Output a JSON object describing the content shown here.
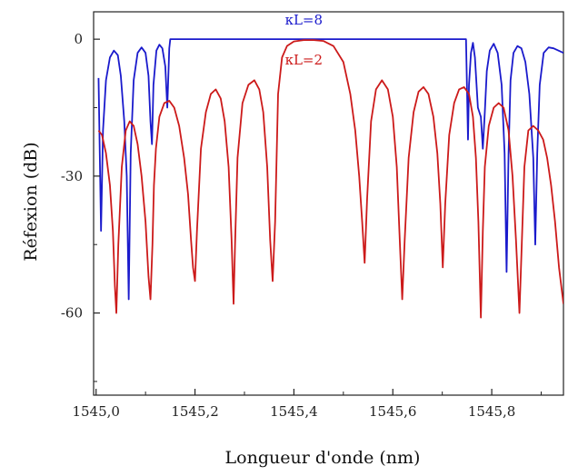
{
  "chart_data": {
    "type": "line",
    "title": "",
    "xlabel": "Longueur d'onde (nm)",
    "ylabel": "Réfexion (dB)",
    "xlim": [
      1544.995,
      1545.945
    ],
    "ylim": [
      -78,
      6
    ],
    "x_ticks": [
      1545.0,
      1545.2,
      1545.4,
      1545.6,
      1545.8
    ],
    "x_tick_labels": [
      "1545,0",
      "1545,2",
      "1545,4",
      "1545,6",
      "1545,8"
    ],
    "y_ticks": [
      0,
      -30,
      -60
    ],
    "y_tick_labels": [
      "0",
      "-30",
      "-60"
    ],
    "grid": false,
    "series": [
      {
        "name": "κL=8",
        "color": "#1a1acc",
        "x": [
          1545.005,
          1545.01,
          1545.014,
          1545.02,
          1545.028,
          1545.036,
          1545.044,
          1545.05,
          1545.057,
          1545.062,
          1545.066,
          1545.07,
          1545.076,
          1545.084,
          1545.092,
          1545.1,
          1545.106,
          1545.11,
          1545.113,
          1545.116,
          1545.122,
          1545.128,
          1545.134,
          1545.14,
          1545.144,
          1545.148,
          1545.15,
          1545.16,
          1545.2,
          1545.3,
          1545.4,
          1545.5,
          1545.6,
          1545.7,
          1545.74,
          1545.748,
          1545.752,
          1545.754,
          1545.758,
          1545.762,
          1545.766,
          1545.772,
          1545.778,
          1545.782,
          1545.786,
          1545.79,
          1545.796,
          1545.804,
          1545.812,
          1545.82,
          1545.826,
          1545.83,
          1545.834,
          1545.838,
          1545.844,
          1545.852,
          1545.86,
          1545.868,
          1545.876,
          1545.884,
          1545.888,
          1545.892,
          1545.897,
          1545.905,
          1545.915,
          1545.925,
          1545.935,
          1545.945
        ],
        "y": [
          -8.5,
          -42,
          -20,
          -9,
          -4,
          -2.5,
          -3.5,
          -8,
          -18,
          -30,
          -57,
          -25,
          -9,
          -3,
          -1.8,
          -3,
          -8,
          -18,
          -23,
          -10,
          -2.5,
          -1.2,
          -2,
          -6,
          -15,
          -2,
          0,
          0,
          0,
          0,
          0,
          0,
          0,
          0,
          0,
          0,
          -22,
          -10,
          -3,
          -0.8,
          -4,
          -15,
          -17,
          -24,
          -16,
          -7,
          -2.5,
          -1,
          -3,
          -10,
          -25,
          -51,
          -25,
          -9,
          -3,
          -1.5,
          -2,
          -5,
          -12,
          -26,
          -45,
          -25,
          -10,
          -3,
          -1.8,
          -2,
          -2.5,
          -3
        ]
      },
      {
        "name": "κL=2",
        "color": "#cc1a1a",
        "x": [
          1545.005,
          1545.012,
          1545.02,
          1545.028,
          1545.034,
          1545.038,
          1545.041,
          1545.045,
          1545.052,
          1545.06,
          1545.068,
          1545.076,
          1545.084,
          1545.092,
          1545.1,
          1545.106,
          1545.11,
          1545.114,
          1545.117,
          1545.121,
          1545.128,
          1545.138,
          1545.148,
          1545.158,
          1545.168,
          1545.178,
          1545.186,
          1545.192,
          1545.196,
          1545.2,
          1545.204,
          1545.212,
          1545.222,
          1545.232,
          1545.242,
          1545.252,
          1545.26,
          1545.268,
          1545.274,
          1545.278,
          1545.281,
          1545.286,
          1545.296,
          1545.308,
          1545.32,
          1545.33,
          1545.338,
          1545.346,
          1545.352,
          1545.357,
          1545.362,
          1545.368,
          1545.376,
          1545.386,
          1545.4,
          1545.42,
          1545.44,
          1545.46,
          1545.48,
          1545.5,
          1545.514,
          1545.524,
          1545.532,
          1545.538,
          1545.543,
          1545.548,
          1545.556,
          1545.566,
          1545.578,
          1545.59,
          1545.6,
          1545.608,
          1545.614,
          1545.619,
          1545.624,
          1545.632,
          1545.642,
          1545.652,
          1545.662,
          1545.672,
          1545.682,
          1545.69,
          1545.696,
          1545.701,
          1545.706,
          1545.714,
          1545.724,
          1545.734,
          1545.744,
          1545.754,
          1545.762,
          1545.768,
          1545.773,
          1545.778,
          1545.782,
          1545.786,
          1545.794,
          1545.804,
          1545.814,
          1545.824,
          1545.834,
          1545.842,
          1545.849,
          1545.856,
          1545.861,
          1545.866,
          1545.874,
          1545.884,
          1545.894,
          1545.904,
          1545.912,
          1545.92,
          1545.928,
          1545.936,
          1545.945
        ],
        "y": [
          -20,
          -21,
          -25,
          -32,
          -42,
          -54,
          -60,
          -45,
          -28,
          -20,
          -18,
          -19,
          -23,
          -30,
          -40,
          -52,
          -57,
          -45,
          -32,
          -24,
          -17,
          -14,
          -13.5,
          -15,
          -19,
          -26,
          -34,
          -44,
          -50,
          -53,
          -42,
          -24,
          -16,
          -12,
          -11,
          -13,
          -18,
          -28,
          -44,
          -58,
          -45,
          -26,
          -14,
          -10,
          -9,
          -11,
          -16,
          -28,
          -44,
          -53,
          -40,
          -12,
          -4,
          -1.5,
          -0.5,
          -0.2,
          -0.2,
          -0.4,
          -1.5,
          -5,
          -12,
          -20,
          -30,
          -40,
          -49,
          -35,
          -18,
          -11,
          -9,
          -11,
          -17,
          -28,
          -44,
          -57,
          -44,
          -26,
          -16,
          -11.5,
          -10.5,
          -12,
          -17,
          -25,
          -36,
          -50,
          -36,
          -21,
          -14,
          -11,
          -10.5,
          -12,
          -17,
          -26,
          -40,
          -61,
          -42,
          -28,
          -19,
          -15,
          -14,
          -15,
          -20,
          -30,
          -44,
          -60,
          -44,
          -28,
          -20,
          -19,
          -20,
          -22,
          -26,
          -32,
          -40,
          -50,
          -58
        ]
      }
    ],
    "annotations": [
      {
        "text": "κL=8",
        "x": 1545.42,
        "y": 3.2,
        "color": "#1a1acc"
      },
      {
        "text": "κL=2",
        "x": 1545.42,
        "y": -5.5,
        "color": "#cc1a1a"
      }
    ]
  }
}
